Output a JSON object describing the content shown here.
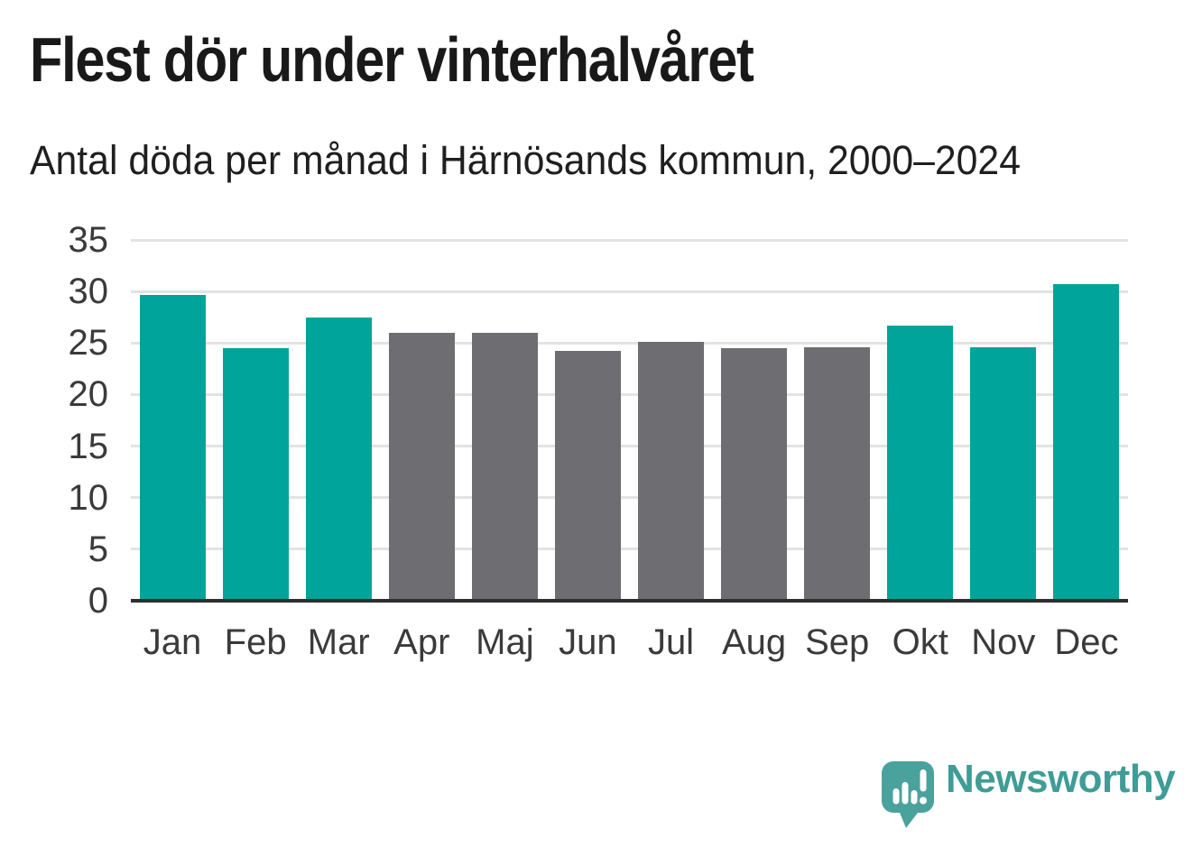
{
  "header": {
    "title": "Flest dör under vinterhalvåret",
    "subtitle": "Antal döda per månad i Härnösands kommun, 2000–2024"
  },
  "chart_data": {
    "type": "bar",
    "title": "Flest dör under vinterhalvåret",
    "subtitle": "Antal döda per månad i Härnösands kommun, 2000–2024",
    "categories": [
      "Jan",
      "Feb",
      "Mar",
      "Apr",
      "Maj",
      "Jun",
      "Jul",
      "Aug",
      "Sep",
      "Okt",
      "Nov",
      "Dec"
    ],
    "values": [
      29.7,
      24.5,
      27.5,
      26.0,
      26.0,
      24.2,
      25.1,
      24.5,
      24.6,
      26.7,
      24.6,
      30.7
    ],
    "bar_colors": [
      "#00a49b",
      "#00a49b",
      "#00a49b",
      "#6d6d72",
      "#6d6d72",
      "#6d6d72",
      "#6d6d72",
      "#6d6d72",
      "#6d6d72",
      "#00a49b",
      "#00a49b",
      "#00a49b"
    ],
    "highlight_color": "#00a49b",
    "base_color": "#6d6d72",
    "xlabel": "",
    "ylabel": "",
    "ylim": [
      0,
      35
    ],
    "yticks": [
      0,
      5,
      10,
      15,
      20,
      25,
      30,
      35
    ],
    "grid": true,
    "legend": false,
    "style": {
      "grid_color": "#e3e3e3",
      "axis_color": "#2e2e2e",
      "tick_color": "#3a3a3a"
    }
  },
  "branding": {
    "logo_text": "Newsworthy",
    "logo_color": "#3f9c96",
    "icon_color": "#4aa29c",
    "icon_glyph_color": "#ffffff",
    "icon_name": "newsworthy-speech-bubble-chart-icon"
  },
  "colors": {
    "title": "#191919",
    "subtitle": "#1f1f1f",
    "background": "#ffffff"
  }
}
